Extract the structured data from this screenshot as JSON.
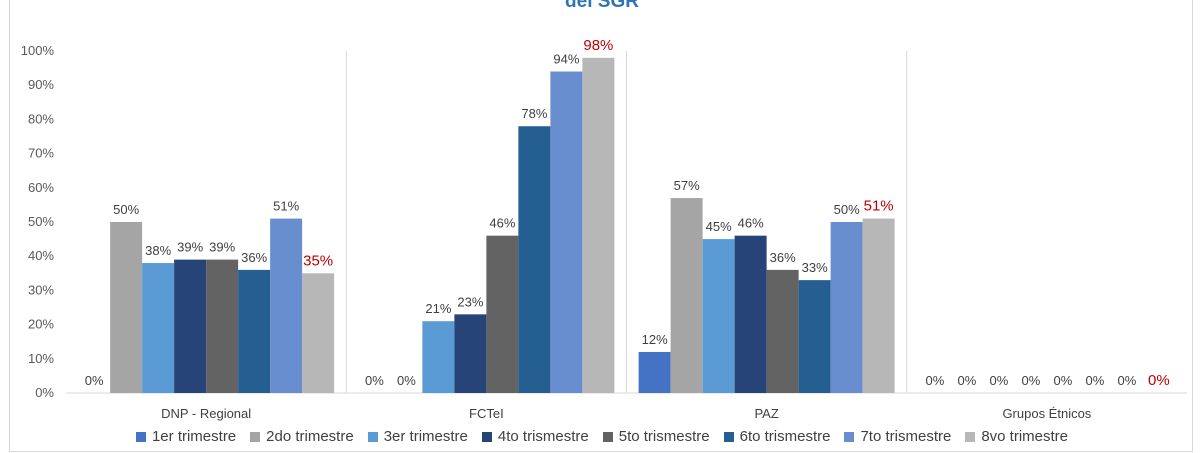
{
  "chart_data": {
    "type": "bar",
    "title": "del SGR",
    "ylim": [
      0,
      100
    ],
    "y_ticks": [
      "0%",
      "10%",
      "20%",
      "30%",
      "40%",
      "50%",
      "60%",
      "70%",
      "80%",
      "90%",
      "100%"
    ],
    "categories": [
      "DNP - Regional",
      "FCTeI",
      "PAZ",
      "Grupos Étnicos"
    ],
    "legend_position": "bottom",
    "series": [
      {
        "name": "1er trimestre",
        "color": "#4472c4",
        "values": [
          0,
          0,
          12,
          0
        ],
        "labels": [
          "0%",
          "0%",
          "12%",
          "0%"
        ]
      },
      {
        "name": "2do trimestre",
        "color": "#a5a5a5",
        "values": [
          50,
          0,
          57,
          0
        ],
        "labels": [
          "50%",
          "0%",
          "57%",
          "0%"
        ]
      },
      {
        "name": "3er trimestre",
        "color": "#5b9bd5",
        "values": [
          38,
          21,
          45,
          0
        ],
        "labels": [
          "38%",
          "21%",
          "45%",
          "0%"
        ]
      },
      {
        "name": "4to trismestre",
        "color": "#264478",
        "values": [
          39,
          23,
          46,
          0
        ],
        "labels": [
          "39%",
          "23%",
          "46%",
          "0%"
        ]
      },
      {
        "name": "5to trismestre",
        "color": "#636363",
        "values": [
          39,
          46,
          36,
          0
        ],
        "labels": [
          "39%",
          "46%",
          "36%",
          "0%"
        ]
      },
      {
        "name": "6to trismestre",
        "color": "#255e91",
        "values": [
          36,
          78,
          33,
          0
        ],
        "labels": [
          "36%",
          "78%",
          "33%",
          "0%"
        ]
      },
      {
        "name": "7to trismestre",
        "color": "#698ed0",
        "values": [
          51,
          94,
          50,
          0
        ],
        "labels": [
          "51%",
          "94%",
          "50%",
          "0%"
        ]
      },
      {
        "name": "8vo trimestre",
        "color": "#b7b7b7",
        "values": [
          35,
          98,
          51,
          0
        ],
        "labels": [
          "35%",
          "98%",
          "51%",
          "0%"
        ],
        "label_color": "#c00000"
      }
    ]
  }
}
